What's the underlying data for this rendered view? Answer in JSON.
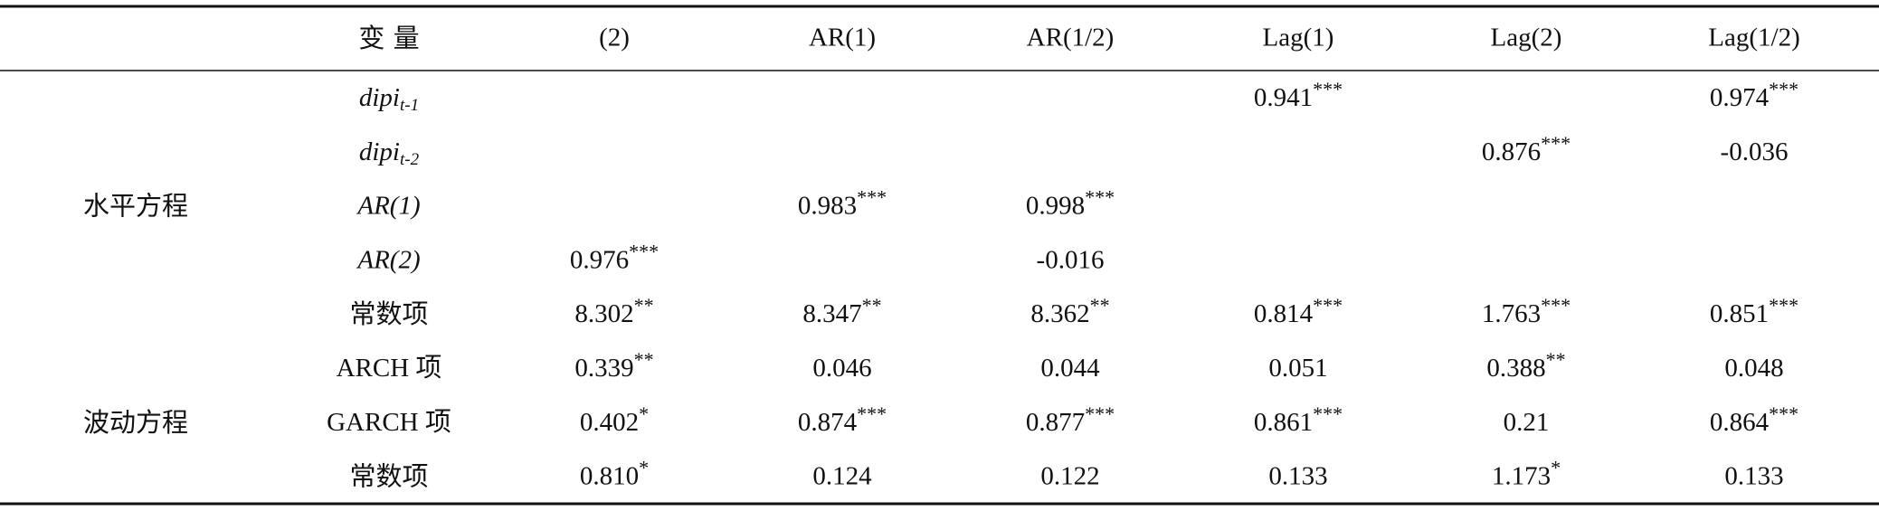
{
  "header": {
    "columns": [
      "变 量",
      "(2)",
      "AR(1)",
      "AR(1/2)",
      "Lag(1)",
      "Lag(2)",
      "Lag(1/2)"
    ]
  },
  "groups": [
    {
      "label": "水平方程",
      "rows": [
        {
          "variable": {
            "base": "dipi",
            "sub": "t-1"
          },
          "cells": [
            null,
            null,
            null,
            {
              "value": "0.941",
              "sig": "***"
            },
            null,
            {
              "value": "0.974",
              "sig": "***"
            }
          ]
        },
        {
          "variable": {
            "base": "dipi",
            "sub": "t-2"
          },
          "cells": [
            null,
            null,
            null,
            null,
            {
              "value": "0.876",
              "sig": "***"
            },
            {
              "value": "-0.036"
            }
          ]
        },
        {
          "variable": {
            "base": "AR(1)"
          },
          "cells": [
            null,
            {
              "value": "0.983",
              "sig": "***"
            },
            {
              "value": "0.998",
              "sig": "***"
            },
            null,
            null,
            null
          ]
        },
        {
          "variable": {
            "base": "AR(2)"
          },
          "cells": [
            {
              "value": "0.976",
              "sig": "***"
            },
            null,
            {
              "value": "-0.016"
            },
            null,
            null,
            null
          ]
        },
        {
          "variable": {
            "base": "常数项"
          },
          "cells": [
            {
              "value": "8.302",
              "sig": "**"
            },
            {
              "value": "8.347",
              "sig": "**"
            },
            {
              "value": "8.362",
              "sig": "**"
            },
            {
              "value": "0.814",
              "sig": "***"
            },
            {
              "value": "1.763",
              "sig": "***"
            },
            {
              "value": "0.851",
              "sig": "***"
            }
          ]
        }
      ]
    },
    {
      "label": "波动方程",
      "rows": [
        {
          "variable": {
            "base": "ARCH 项"
          },
          "cells": [
            {
              "value": "0.339",
              "sig": "**"
            },
            {
              "value": "0.046"
            },
            {
              "value": "0.044"
            },
            {
              "value": "0.051"
            },
            {
              "value": "0.388",
              "sig": "**"
            },
            {
              "value": "0.048"
            }
          ]
        },
        {
          "variable": {
            "base": "GARCH 项"
          },
          "cells": [
            {
              "value": "0.402",
              "sig": "*"
            },
            {
              "value": "0.874",
              "sig": "***"
            },
            {
              "value": "0.877",
              "sig": "***"
            },
            {
              "value": "0.861",
              "sig": "***"
            },
            {
              "value": "0.21"
            },
            {
              "value": "0.864",
              "sig": "***"
            }
          ]
        },
        {
          "variable": {
            "base": "常数项"
          },
          "cells": [
            {
              "value": "0.810",
              "sig": "*"
            },
            {
              "value": "0.124"
            },
            {
              "value": "0.122"
            },
            {
              "value": "0.133"
            },
            {
              "value": "1.173",
              "sig": "*"
            },
            {
              "value": "0.133"
            }
          ]
        }
      ]
    }
  ]
}
